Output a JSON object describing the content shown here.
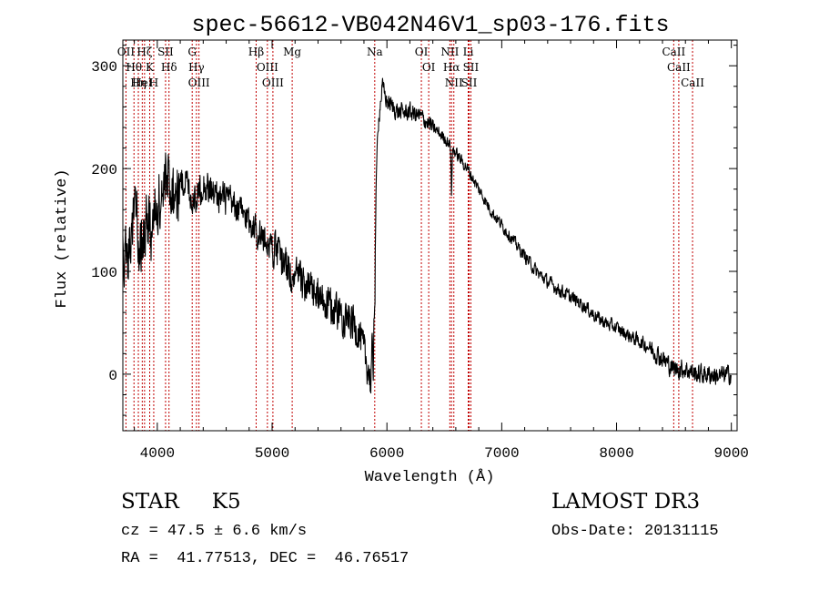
{
  "chart_data": {
    "type": "line",
    "title": "spec-56612-VB042N46V1_sp03-176.fits",
    "xlabel": "Wavelength (Å)",
    "ylabel": "Flux (relative)",
    "xlim": [
      3700,
      9050
    ],
    "ylim": [
      -55,
      325
    ],
    "xticks": [
      4000,
      5000,
      6000,
      7000,
      8000,
      9000
    ],
    "yticks": [
      0,
      100,
      200,
      300
    ],
    "grid": false,
    "lines": [
      {
        "x": 3727,
        "labels": [
          "OII"
        ]
      },
      {
        "x": 3797,
        "labels": [
          "Hθ"
        ]
      },
      {
        "x": 3835,
        "labels": [
          "Hη"
        ]
      },
      {
        "x": 3869,
        "labels": [
          "HeI"
        ]
      },
      {
        "x": 3889,
        "labels": [
          "Hζ"
        ]
      },
      {
        "x": 3934,
        "labels": [
          "K"
        ]
      },
      {
        "x": 3969,
        "labels": [
          "H"
        ]
      },
      {
        "x": 4072,
        "labels": [
          "SII"
        ]
      },
      {
        "x": 4102,
        "labels": [
          "Hδ"
        ]
      },
      {
        "x": 4304,
        "labels": [
          "G"
        ]
      },
      {
        "x": 4341,
        "labels": [
          "Hγ"
        ]
      },
      {
        "x": 4363,
        "labels": [
          "OIII"
        ]
      },
      {
        "x": 4861,
        "labels": [
          "Hβ"
        ]
      },
      {
        "x": 4959,
        "labels": [
          "OIII"
        ]
      },
      {
        "x": 5007,
        "labels": [
          "OIII"
        ]
      },
      {
        "x": 5175,
        "labels": [
          "Mg"
        ]
      },
      {
        "x": 5894,
        "labels": [
          "Na"
        ]
      },
      {
        "x": 6300,
        "labels": [
          "OI"
        ]
      },
      {
        "x": 6364,
        "labels": [
          "OI"
        ]
      },
      {
        "x": 6548,
        "labels": [
          "NII"
        ]
      },
      {
        "x": 6563,
        "labels": [
          "Hα"
        ]
      },
      {
        "x": 6583,
        "labels": [
          "NII"
        ]
      },
      {
        "x": 6708,
        "labels": [
          "Li"
        ]
      },
      {
        "x": 6716,
        "labels": [
          "SII"
        ]
      },
      {
        "x": 6731,
        "labels": [
          "SII"
        ]
      },
      {
        "x": 8498,
        "labels": [
          "CaII"
        ]
      },
      {
        "x": 8542,
        "labels": [
          "CaII"
        ]
      },
      {
        "x": 8662,
        "labels": [
          "CaII"
        ]
      }
    ],
    "continuum": [
      [
        3700,
        110
      ],
      [
        3760,
        125
      ],
      [
        3800,
        160
      ],
      [
        3850,
        130
      ],
      [
        3900,
        150
      ],
      [
        3950,
        140
      ],
      [
        4000,
        165
      ],
      [
        4050,
        175
      ],
      [
        4100,
        190
      ],
      [
        4150,
        175
      ],
      [
        4200,
        185
      ],
      [
        4250,
        190
      ],
      [
        4300,
        170
      ],
      [
        4350,
        175
      ],
      [
        4400,
        185
      ],
      [
        4450,
        180
      ],
      [
        4500,
        175
      ],
      [
        4600,
        170
      ],
      [
        4700,
        160
      ],
      [
        4800,
        150
      ],
      [
        4900,
        135
      ],
      [
        5000,
        125
      ],
      [
        5100,
        110
      ],
      [
        5200,
        95
      ],
      [
        5300,
        85
      ],
      [
        5400,
        75
      ],
      [
        5500,
        65
      ],
      [
        5600,
        60
      ],
      [
        5700,
        50
      ],
      [
        5760,
        40
      ],
      [
        5800,
        20
      ],
      [
        5840,
        5
      ],
      [
        5860,
        -10
      ],
      [
        5880,
        60
      ],
      [
        5900,
        150
      ],
      [
        5920,
        240
      ],
      [
        5960,
        280
      ],
      [
        6000,
        265
      ],
      [
        6100,
        255
      ],
      [
        6200,
        255
      ],
      [
        6300,
        250
      ],
      [
        6400,
        240
      ],
      [
        6500,
        230
      ],
      [
        6600,
        215
      ],
      [
        6700,
        200
      ],
      [
        6800,
        180
      ],
      [
        6900,
        160
      ],
      [
        7000,
        145
      ],
      [
        7100,
        130
      ],
      [
        7200,
        115
      ],
      [
        7300,
        100
      ],
      [
        7400,
        90
      ],
      [
        7500,
        82
      ],
      [
        7600,
        75
      ],
      [
        7700,
        68
      ],
      [
        7800,
        58
      ],
      [
        7900,
        50
      ],
      [
        8000,
        45
      ],
      [
        8100,
        38
      ],
      [
        8200,
        32
      ],
      [
        8300,
        25
      ],
      [
        8400,
        15
      ],
      [
        8500,
        5
      ],
      [
        8600,
        5
      ],
      [
        8700,
        0
      ],
      [
        8800,
        0
      ],
      [
        8900,
        -2
      ],
      [
        9000,
        0
      ]
    ],
    "dips": [
      {
        "x": 5880,
        "depth": 65,
        "width": 6
      },
      {
        "x": 5895,
        "depth": 55,
        "width": 6
      },
      {
        "x": 6563,
        "depth": 45,
        "width": 5
      },
      {
        "x": 5175,
        "depth": 20,
        "width": 9
      }
    ],
    "noise": [
      {
        "x0": 3700,
        "x1": 4200,
        "amp": 45
      },
      {
        "x0": 4200,
        "x1": 5000,
        "amp": 22
      },
      {
        "x0": 5000,
        "x1": 5900,
        "amp": 26
      },
      {
        "x0": 5900,
        "x1": 6400,
        "amp": 12
      },
      {
        "x0": 6400,
        "x1": 7200,
        "amp": 8
      },
      {
        "x0": 7200,
        "x1": 8300,
        "amp": 9
      },
      {
        "x0": 8300,
        "x1": 9000,
        "amp": 13
      }
    ]
  },
  "info": {
    "class_label": "STAR",
    "subclass": "K5",
    "survey": "LAMOST DR3",
    "cz": "cz = 47.5 ± 6.6 km/s",
    "obs_date": "Obs-Date: 20131115",
    "radec": "RA =  41.77513, DEC =  46.76517"
  }
}
